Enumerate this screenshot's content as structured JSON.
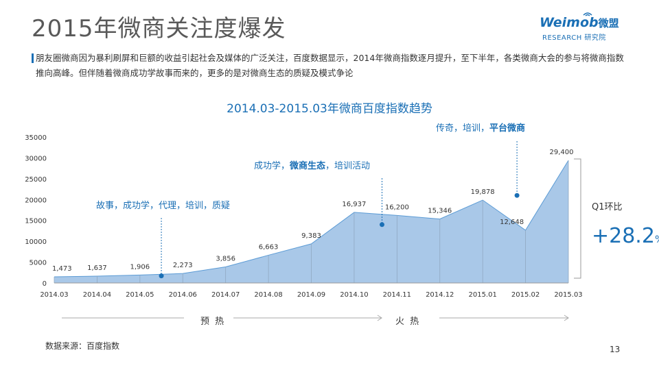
{
  "header": {
    "title": "2015年微商关注度爆发",
    "logo_main": "Weimob",
    "logo_cn": "微盟",
    "logo_sub": "RESEARCH 研究院"
  },
  "description": "朋友圈微商因为暴利刷屏和巨额的收益引起社会及媒体的广泛关注，百度数据显示，2014年微商指数逐月提升，至下半年，各类微商大会的参与将微商指数推向高峰。但伴随着微商成功学故事而来的，更多的是对微商生态的质疑及模式争论",
  "chart_data": {
    "type": "area",
    "title": "2014.03-2015.03年微商百度指数趋势",
    "categories": [
      "2014.03",
      "2014.04",
      "2014.05",
      "2014.06",
      "2014.07",
      "2014.08",
      "2014.09",
      "2014.10",
      "2014.11",
      "2014.12",
      "2015.01",
      "2015.02",
      "2015.03"
    ],
    "values": [
      1473,
      1637,
      1906,
      2273,
      3856,
      6663,
      9383,
      16937,
      16200,
      15346,
      19878,
      12648,
      29400
    ],
    "data_labels": [
      "1,473",
      "1,637",
      "1,906",
      "2,273",
      "3,856",
      "6,663",
      "9,383",
      "16,937",
      "16,200",
      "15,346",
      "19,878",
      "12,648",
      "29,400"
    ],
    "ylim": [
      0,
      35000
    ],
    "yticks": [
      0,
      5000,
      10000,
      15000,
      20000,
      25000,
      30000,
      35000
    ],
    "ytick_labels": [
      "0",
      "5000",
      "10000",
      "15000",
      "20000",
      "25000",
      "30000",
      "35000"
    ],
    "xlabel": "",
    "ylabel": "",
    "grid": false,
    "fill_color": "#a9c8e8",
    "line_color": "#1a6fb5",
    "annotations": [
      {
        "text": "故事，成功学，代理，培训，质疑",
        "bold": "",
        "marker_x": 2.5,
        "marker_y": 1700
      },
      {
        "text_before": "成功学，",
        "bold": "微商生态",
        "text_after": "，培训活动",
        "marker_x": 7.65,
        "marker_y": 14000
      },
      {
        "text_before": "传奇，培训，",
        "bold": "平台微商",
        "text_after": "",
        "marker_x": 10.8,
        "marker_y": 21000
      }
    ]
  },
  "comparison": {
    "label": "Q1环比",
    "value": "+28.2",
    "unit": "%"
  },
  "phases": [
    {
      "label": "预 热"
    },
    {
      "label": "火 热"
    }
  ],
  "footer": {
    "source": "数据来源：百度指数",
    "page_number": "13"
  },
  "colors": {
    "accent": "#1a6fb5",
    "area": "#a9c8e8",
    "marker": "#1a6fb5"
  }
}
